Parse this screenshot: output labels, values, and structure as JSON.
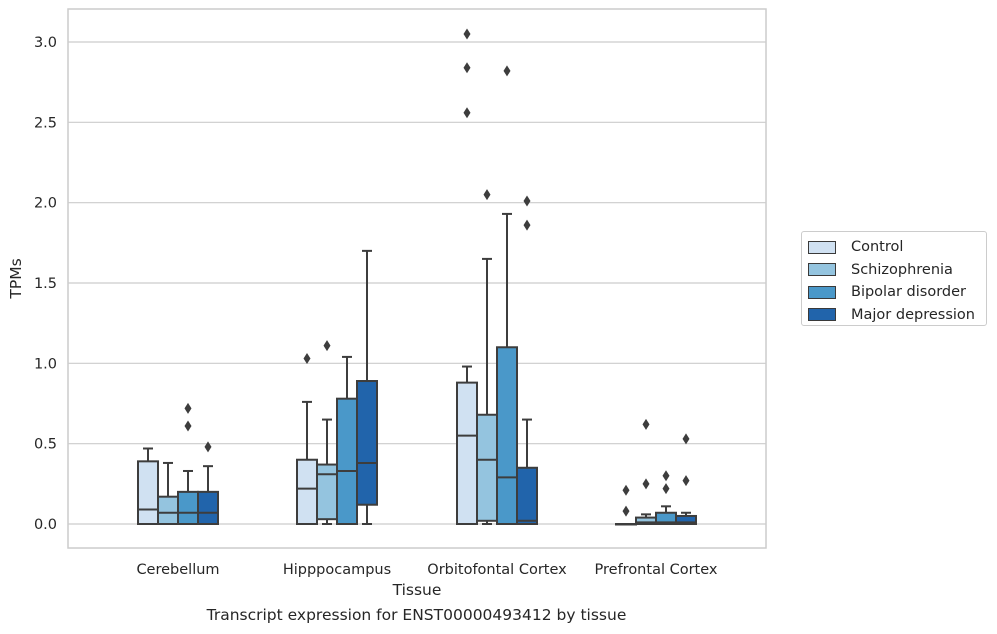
{
  "chart_data": {
    "type": "box",
    "title": "",
    "xlabel": "Tissue",
    "ylabel": "TPMs",
    "ylim": [
      -0.15,
      3.2
    ],
    "yticks": [
      0.0,
      0.5,
      1.0,
      1.5,
      2.0,
      2.5,
      3.0
    ],
    "ytick_labels": [
      "0.0",
      "0.5",
      "1.0",
      "1.5",
      "2.0",
      "2.5",
      "3.0"
    ],
    "grid": true,
    "legend_position": "right",
    "categories": [
      "Cerebellum",
      "Hipppocampus",
      "Orbitofontal Cortex",
      "Prefrontal Cortex"
    ],
    "series": [
      {
        "name": "Control",
        "color": "#d0e1f2",
        "boxes": [
          {
            "whislo": 0.0,
            "q1": 0.0,
            "med": 0.09,
            "q3": 0.39,
            "whishi": 0.47,
            "fliers": []
          },
          {
            "whislo": 0.0,
            "q1": 0.0,
            "med": 0.22,
            "q3": 0.4,
            "whishi": 0.76,
            "fliers": [
              1.03
            ]
          },
          {
            "whislo": 0.0,
            "q1": 0.0,
            "med": 0.55,
            "q3": 0.88,
            "whishi": 0.98,
            "fliers": [
              2.56,
              2.84,
              3.05
            ]
          },
          {
            "whislo": 0.0,
            "q1": 0.0,
            "med": 0.0,
            "q3": 0.0,
            "whishi": 0.0,
            "fliers": [
              0.08,
              0.21
            ]
          }
        ]
      },
      {
        "name": "Schizophrenia",
        "color": "#94c4df",
        "boxes": [
          {
            "whislo": 0.0,
            "q1": 0.0,
            "med": 0.07,
            "q3": 0.17,
            "whishi": 0.38,
            "fliers": []
          },
          {
            "whislo": 0.0,
            "q1": 0.03,
            "med": 0.31,
            "q3": 0.37,
            "whishi": 0.65,
            "fliers": [
              1.11
            ]
          },
          {
            "whislo": 0.0,
            "q1": 0.02,
            "med": 0.4,
            "q3": 0.68,
            "whishi": 1.65,
            "fliers": [
              2.05
            ]
          },
          {
            "whislo": 0.0,
            "q1": 0.0,
            "med": 0.01,
            "q3": 0.04,
            "whishi": 0.06,
            "fliers": [
              0.25,
              0.62
            ]
          }
        ]
      },
      {
        "name": "Bipolar disorder",
        "color": "#4a98c9",
        "boxes": [
          {
            "whislo": 0.0,
            "q1": 0.0,
            "med": 0.07,
            "q3": 0.2,
            "whishi": 0.33,
            "fliers": [
              0.61,
              0.72
            ]
          },
          {
            "whislo": 0.0,
            "q1": 0.0,
            "med": 0.33,
            "q3": 0.78,
            "whishi": 1.04,
            "fliers": []
          },
          {
            "whislo": 0.0,
            "q1": 0.0,
            "med": 0.29,
            "q3": 1.1,
            "whishi": 1.93,
            "fliers": [
              2.82
            ]
          },
          {
            "whislo": 0.0,
            "q1": 0.0,
            "med": 0.01,
            "q3": 0.07,
            "whishi": 0.11,
            "fliers": [
              0.22,
              0.3
            ]
          }
        ]
      },
      {
        "name": "Major depression",
        "color": "#2164ab",
        "boxes": [
          {
            "whislo": 0.0,
            "q1": 0.0,
            "med": 0.07,
            "q3": 0.2,
            "whishi": 0.36,
            "fliers": [
              0.48
            ]
          },
          {
            "whislo": 0.0,
            "q1": 0.12,
            "med": 0.38,
            "q3": 0.89,
            "whishi": 1.7,
            "fliers": []
          },
          {
            "whislo": 0.0,
            "q1": 0.0,
            "med": 0.02,
            "q3": 0.35,
            "whishi": 0.65,
            "fliers": [
              1.86,
              2.01
            ]
          },
          {
            "whislo": 0.0,
            "q1": 0.0,
            "med": 0.01,
            "q3": 0.05,
            "whishi": 0.07,
            "fliers": [
              0.27,
              0.53
            ]
          }
        ]
      }
    ]
  },
  "caption": "Transcript expression for ENST00000493412 by tissue"
}
